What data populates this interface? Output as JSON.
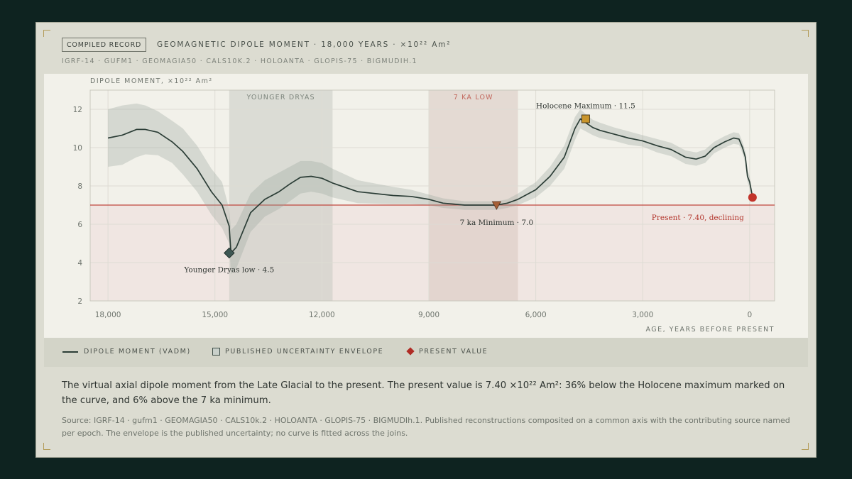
{
  "header": {
    "badge": "COMPILED RECORD",
    "title": "GEOMAGNETIC DIPOLE MOMENT · 18,000 YEARS · ×10²² Am²",
    "sources": "IGRF-14 · GUFM1 · GEOMAGIA50 · CALS10K.2 · HOLOANTA · GLOPIS-75 · BIGMUDIH.1"
  },
  "chart_data": {
    "type": "line",
    "ylabel": "DIPOLE MOMENT, ×10²² Am²",
    "xlabel": "AGE, YEARS BEFORE PRESENT",
    "xlim": [
      18500,
      -700
    ],
    "ylim": [
      2,
      13
    ],
    "x_ticks": [
      18000,
      15000,
      12000,
      9000,
      6000,
      3000,
      0
    ],
    "x_tick_labels": [
      "18,000",
      "15,000",
      "12,000",
      "9,000",
      "6,000",
      "3,000",
      "0"
    ],
    "y_ticks": [
      2,
      4,
      6,
      8,
      10,
      12
    ],
    "y_tick_labels": [
      "2",
      "4",
      "6",
      "8",
      "10",
      "12"
    ],
    "grid": true,
    "series": [
      {
        "name": "DIPOLE MOMENT (VADM)",
        "color": "#2b3d36",
        "x": [
          18000,
          17600,
          17200,
          16950,
          16600,
          16200,
          15900,
          15500,
          15100,
          14800,
          14600,
          14550,
          14400,
          14000,
          13600,
          13200,
          12900,
          12600,
          12300,
          12000,
          11700,
          11000,
          10000,
          9500,
          9000,
          8600,
          8000,
          7500,
          7100,
          6800,
          6500,
          6000,
          5600,
          5200,
          4900,
          4750,
          4600,
          4400,
          4200,
          3800,
          3400,
          3000,
          2600,
          2200,
          1800,
          1500,
          1250,
          1000,
          700,
          450,
          300,
          200,
          120,
          60,
          0,
          -40,
          -80
        ],
        "values": [
          10.5,
          10.65,
          10.95,
          10.95,
          10.8,
          10.3,
          9.8,
          8.9,
          7.7,
          7.0,
          5.9,
          4.5,
          4.8,
          6.6,
          7.3,
          7.7,
          8.1,
          8.45,
          8.5,
          8.4,
          8.15,
          7.7,
          7.5,
          7.45,
          7.3,
          7.1,
          7.0,
          7.0,
          7.0,
          7.1,
          7.3,
          7.8,
          8.5,
          9.5,
          11.0,
          11.5,
          11.3,
          11.05,
          10.9,
          10.7,
          10.5,
          10.35,
          10.1,
          9.9,
          9.5,
          9.4,
          9.55,
          10.0,
          10.3,
          10.5,
          10.45,
          10.0,
          9.5,
          8.5,
          8.2,
          7.8,
          7.4
        ],
        "upper": [
          12.0,
          12.2,
          12.3,
          12.2,
          11.9,
          11.4,
          11.0,
          10.1,
          8.9,
          8.2,
          6.8,
          5.7,
          6.0,
          7.6,
          8.3,
          8.7,
          9.0,
          9.3,
          9.3,
          9.2,
          8.9,
          8.3,
          7.95,
          7.8,
          7.55,
          7.35,
          7.2,
          7.2,
          7.2,
          7.3,
          7.6,
          8.2,
          9.0,
          10.1,
          11.6,
          12.0,
          11.75,
          11.45,
          11.3,
          11.05,
          10.85,
          10.65,
          10.45,
          10.25,
          9.85,
          9.75,
          9.9,
          10.3,
          10.6,
          10.8,
          10.75,
          10.3,
          9.8,
          8.8,
          8.5,
          8.05,
          7.65
        ],
        "lower": [
          9.0,
          9.1,
          9.5,
          9.65,
          9.6,
          9.2,
          8.6,
          7.7,
          6.5,
          5.8,
          5.0,
          3.4,
          3.7,
          5.6,
          6.4,
          6.8,
          7.2,
          7.6,
          7.7,
          7.6,
          7.4,
          7.1,
          7.05,
          7.05,
          7.0,
          6.85,
          6.75,
          6.75,
          6.75,
          6.85,
          7.0,
          7.4,
          8.0,
          8.9,
          10.4,
          11.0,
          10.85,
          10.65,
          10.5,
          10.35,
          10.15,
          10.05,
          9.75,
          9.55,
          9.15,
          9.05,
          9.2,
          9.7,
          10.0,
          10.2,
          10.15,
          9.7,
          9.2,
          8.2,
          7.9,
          7.55,
          7.15
        ]
      }
    ],
    "envelope_label": "PUBLISHED UNCERTAINTY ENVELOPE",
    "bands": [
      {
        "label": "YOUNGER DRYAS",
        "from": 14600,
        "to": 11700,
        "color": "#c8cbc3"
      },
      {
        "label": "7 KA LOW",
        "from": 9000,
        "to": 6500,
        "color": "#d9c7c0"
      }
    ],
    "reference_line": {
      "value": 7.0,
      "color": "#c0463d"
    },
    "annotations": [
      {
        "x": 14600,
        "y": 4.5,
        "marker": "diamond",
        "color": "#3d5753",
        "label": "Younger Dryas low · 4.5"
      },
      {
        "x": 7100,
        "y": 7.0,
        "marker": "triangle",
        "color": "#a65f36",
        "label": "7 ka Minimum · 7.0"
      },
      {
        "x": 4600,
        "y": 11.5,
        "marker": "square",
        "color": "#c9952c",
        "label": "Holocene Maximum · 11.5"
      },
      {
        "x": -80,
        "y": 7.4,
        "marker": "circle",
        "color": "#c2342b",
        "label": "Present · 7.40, declining"
      }
    ]
  },
  "legend": {
    "line_label": "DIPOLE MOMENT (VADM)",
    "envelope_label": "PUBLISHED UNCERTAINTY ENVELOPE",
    "present_label": "PRESENT VALUE"
  },
  "caption": "The virtual axial dipole moment from the Late Glacial to the present. The present value is 7.40 ×10²² Am²: 36% below the Holocene maximum marked on the curve, and 6% above the 7 ka minimum.",
  "source_note": "Source: IGRF-14 · gufm1 · GEOMAGIA50 · CALS10k.2 · HOLOANTA · GLOPIS-75 · BIGMUDIh.1. Published reconstructions composited on a common axis with the contributing source named per epoch. The envelope is the published uncertainty; no curve is fitted across the joins."
}
